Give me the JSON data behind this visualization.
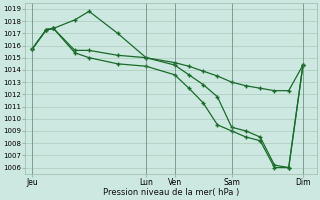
{
  "background_color": "#cce8e0",
  "grid_color": "#aaccbb",
  "line_color": "#1a6b2a",
  "marker_color": "#1a6b2a",
  "xlabel": "Pression niveau de la mer( hPa )",
  "ylim": [
    1005.5,
    1019.5
  ],
  "yticks": [
    1006,
    1007,
    1008,
    1009,
    1010,
    1011,
    1012,
    1013,
    1014,
    1015,
    1016,
    1017,
    1018,
    1019
  ],
  "xtick_labels": [
    "Jeu",
    "Lun",
    "Ven",
    "Sam",
    "Dim"
  ],
  "xtick_positions": [
    0,
    48,
    60,
    84,
    114
  ],
  "xlim": [
    -3,
    120
  ],
  "vlines": [
    0,
    48,
    60,
    84,
    114
  ],
  "series1_x": [
    0,
    6,
    9,
    18,
    24,
    36,
    48,
    60,
    66,
    72,
    78,
    84,
    90,
    96,
    102,
    108,
    114
  ],
  "series1_y": [
    1015.7,
    1017.3,
    1017.4,
    1018.1,
    1018.8,
    1017.0,
    1015.0,
    1014.4,
    1013.6,
    1012.8,
    1011.8,
    1009.3,
    1009.0,
    1008.5,
    1006.2,
    1006.0,
    1014.4
  ],
  "series2_x": [
    0,
    6,
    9,
    18,
    24,
    36,
    48,
    60,
    66,
    72,
    78,
    84,
    90,
    96,
    102,
    108,
    114
  ],
  "series2_y": [
    1015.7,
    1017.3,
    1017.4,
    1015.6,
    1015.6,
    1015.2,
    1015.0,
    1014.6,
    1014.3,
    1013.9,
    1013.5,
    1013.0,
    1012.7,
    1012.5,
    1012.3,
    1012.3,
    1014.4
  ],
  "series3_x": [
    0,
    6,
    9,
    18,
    24,
    36,
    48,
    60,
    66,
    72,
    78,
    84,
    90,
    96,
    102,
    108,
    114
  ],
  "series3_y": [
    1015.7,
    1017.3,
    1017.4,
    1015.4,
    1015.0,
    1014.5,
    1014.3,
    1013.6,
    1012.5,
    1011.3,
    1009.5,
    1009.0,
    1008.5,
    1008.2,
    1006.0,
    1006.0,
    1014.4
  ]
}
